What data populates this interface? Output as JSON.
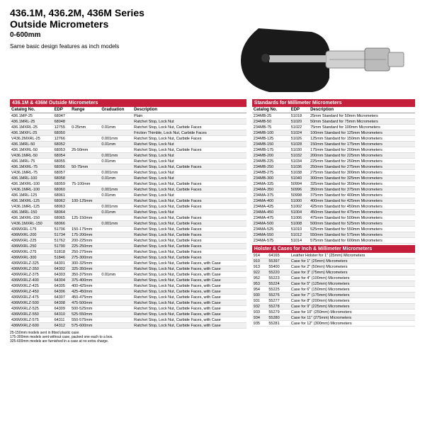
{
  "header": {
    "title": "436.1M, 436.2M, 436M Series",
    "subtitle": "Outside Micrometers",
    "range": "0-600mm",
    "note": "Same basic design features as inch models"
  },
  "leftTable": {
    "heading": "436.1M & 436M Outside Micrometers",
    "cols": [
      "Catalog No.",
      "EDP",
      "Range",
      "Graduation",
      "Description"
    ],
    "rows": [
      [
        "436.1MP-25",
        "68047",
        "",
        "",
        "Plain"
      ],
      [
        "436.1MRL-25",
        "68048",
        "",
        "",
        "Ratchet Stop, Lock Nut"
      ],
      [
        "436.1MXRL-25",
        "12755",
        "0-25mm",
        "0.01mm",
        "Ratchet Stop, Lock Nut, Carbide Faces"
      ],
      [
        "436.1MXFL-25",
        "68050",
        "",
        "",
        "Friction Thimble, Lock Nut, Carbide Faces"
      ],
      [
        "V436.2MXRL-25",
        "12766",
        "",
        "0.001mm",
        "Ratchet Stop, Lock Nut, Carbide Faces"
      ],
      [
        "436.1MRL-50",
        "68052",
        "",
        "0.01mm",
        "Ratchet Stop, Lock Nut"
      ],
      [
        "436.1MXRL-50",
        "68053",
        "25-50mm",
        "",
        "Ratchet Stop, Lock Nut, Carbide Faces"
      ],
      [
        "V436.1MRL-50",
        "68054",
        "",
        "0.001mm",
        "Ratchet Stop, Lock Nut"
      ],
      [
        "436.1MRL-75",
        "68055",
        "",
        "0.01mm",
        "Ratchet Stop, Lock Nut"
      ],
      [
        "436.1MXRL-75",
        "68056",
        "50-75mm",
        "",
        "Ratchet Stop, Lock Nut, Carbide Faces"
      ],
      [
        "V436.1MRL-75",
        "68057",
        "",
        "0.001mm",
        "Ratchet Stop, Lock Nut"
      ],
      [
        "436.1MRL-100",
        "68058",
        "",
        "0.01mm",
        "Ratchet Stop, Lock Nut"
      ],
      [
        "436.1MXRL-100",
        "68059",
        "75-100mm",
        "",
        "Ratchet Stop, Lock Nut, Carbide Faces"
      ],
      [
        "V436.1MRL-100",
        "68060",
        "",
        "0.001mm",
        "Ratchet Stop, Lock Nut, Carbide Faces"
      ],
      [
        "436.1MRL-125",
        "68061",
        "",
        "0.01mm",
        "Ratchet Stop, Lock Nut"
      ],
      [
        "436.1MXRL-125",
        "68062",
        "100-125mm",
        "",
        "Ratchet Stop, Lock Nut, Carbide Faces"
      ],
      [
        "V436.1MRL-125",
        "68063",
        "",
        "0.001mm",
        "Ratchet Stop, Lock Nut, Carbide Faces"
      ],
      [
        "436.1MRL-150",
        "68064",
        "",
        "0.01mm",
        "Ratchet Stop, Lock Nut"
      ],
      [
        "436.1MXRL-150",
        "68065",
        "125-150mm",
        "",
        "Ratchet Stop, Lock Nut, Carbide Faces"
      ],
      [
        "V436.1MXRL-150",
        "68066",
        "",
        "0.001mm",
        "Ratchet Stop, Lock Nut, Carbide Faces"
      ],
      [
        "436MXRL-175",
        "51706",
        "150-175mm",
        "",
        "Ratchet Stop, Lock Nut, Carbide Faces"
      ],
      [
        "436MXRL-200",
        "51734",
        "175-200mm",
        "",
        "Ratchet Stop, Lock Nut, Carbide Faces"
      ],
      [
        "436MXRL-225",
        "51762",
        "200-225mm",
        "",
        "Ratchet Stop, Lock Nut, Carbide Faces"
      ],
      [
        "436MXRL-250",
        "51790",
        "225-250mm",
        "",
        "Ratchet Stop, Lock Nut, Carbide Faces"
      ],
      [
        "436MXRL-275",
        "51818",
        "250-275mm",
        "",
        "Ratchet Stop, Lock Nut, Carbide Faces"
      ],
      [
        "436MXRL-300",
        "51846",
        "275-300mm",
        "",
        "Ratchet Stop, Lock Nut, Carbide Faces"
      ],
      [
        "436MXRLZ-325",
        "64301",
        "300-325mm",
        "",
        "Ratchet Stop, Lock Nut, Carbide Faces, with Case"
      ],
      [
        "436MXRLZ-350",
        "64302",
        "325-350mm",
        "",
        "Ratchet Stop, Lock Nut, Carbide Faces, with Case"
      ],
      [
        "436MXRLZ-375",
        "64303",
        "350-375mm",
        "0.01mm",
        "Ratchet Stop, Lock Nut, Carbide Faces, with Case"
      ],
      [
        "436MXRLZ-400",
        "64304",
        "375-400mm",
        "",
        "Ratchet Stop, Lock Nut, Carbide Faces, with Case"
      ],
      [
        "436MXRLZ-425",
        "64305",
        "400-425mm",
        "",
        "Ratchet Stop, Lock Nut, Carbide Faces, with Case"
      ],
      [
        "436MXRLZ-450",
        "64306",
        "425-450mm",
        "",
        "Ratchet Stop, Lock Nut, Carbide Faces, with Case"
      ],
      [
        "436MXRLZ-475",
        "64307",
        "450-475mm",
        "",
        "Ratchet Stop, Lock Nut, Carbide Faces, with Case"
      ],
      [
        "436MXRLZ-500",
        "64308",
        "475-500mm",
        "",
        "Ratchet Stop, Lock Nut, Carbide Faces, with Case"
      ],
      [
        "436MXRLZ-525",
        "64309",
        "500-525mm",
        "",
        "Ratchet Stop, Lock Nut, Carbide Faces, with Case"
      ],
      [
        "436MXRLZ-550",
        "64310",
        "525-550mm",
        "",
        "Ratchet Stop, Lock Nut, Carbide Faces, with Case"
      ],
      [
        "436MXRLZ-575",
        "64311",
        "550-575mm",
        "",
        "Ratchet Stop, Lock Nut, Carbide Faces, with Case"
      ],
      [
        "436MXRLZ-600",
        "64312",
        "575-600mm",
        "",
        "Ratchet Stop, Lock Nut, Carbide Faces, with Case"
      ]
    ]
  },
  "rightTableA": {
    "heading": "Standards for Millimeter Micrometers",
    "cols": [
      "Catalog No.",
      "EDP",
      "Description"
    ],
    "rows": [
      [
        "234MB-25",
        "51018",
        "25mm Standard for 50mm Micrometers"
      ],
      [
        "234MB-50",
        "51020",
        "50mm Standard for 75mm Micrometers"
      ],
      [
        "234MB-75",
        "51022",
        "75mm Standard for 100mm Micrometers"
      ],
      [
        "234MB-100",
        "51024",
        "100mm Standard for 125mm Micrometers"
      ],
      [
        "234MB-125",
        "51026",
        "125mm Standard for 150mm Micrometers"
      ],
      [
        "234MB-150",
        "51028",
        "150mm Standard for 175mm Micrometers"
      ],
      [
        "234MB-175",
        "51030",
        "175mm Standard for 200mm Micrometers"
      ],
      [
        "234MB-200",
        "51032",
        "200mm Standard for 225mm Micrometers"
      ],
      [
        "234MB-225",
        "51034",
        "225mm Standard for 250mm Micrometers"
      ],
      [
        "234MB-250",
        "51036",
        "250mm Standard for 275mm Micrometers"
      ],
      [
        "234MB-275",
        "51038",
        "275mm Standard for 300mm Micrometers"
      ],
      [
        "234MB-300",
        "51040",
        "300mm Standard for 325mm Micrometers"
      ],
      [
        "234MA-325",
        "50994",
        "325mm Standard for 350mm Micrometers"
      ],
      [
        "234MA-350",
        "50996",
        "350mm Standard for 375mm Micrometers"
      ],
      [
        "234MA-375",
        "50998",
        "375mm Standard for 400mm Micrometers"
      ],
      [
        "234MA-400",
        "51000",
        "400mm Standard for 425mm Micrometers"
      ],
      [
        "234MA-425",
        "51002",
        "425mm Standard for 450mm Micrometers"
      ],
      [
        "234MA-450",
        "51004",
        "450mm Standard for 475mm Micrometers"
      ],
      [
        "234MA-475",
        "51006",
        "475mm Standard for 500mm Micrometers"
      ],
      [
        "234MA-500",
        "51008",
        "500mm Standard for 525mm Micrometers"
      ],
      [
        "234MA-525",
        "51010",
        "525mm Standard for 550mm Micrometers"
      ],
      [
        "234MA-550",
        "51012",
        "550mm Standard for 575mm Micrometers"
      ],
      [
        "234MA-575",
        "51014",
        "575mm Standard for 600mm Micrometers"
      ]
    ]
  },
  "rightTableB": {
    "heading": "Holster & Cases for Inch & Millimeter Micrometers",
    "rows": [
      [
        "914",
        "64165",
        "Leather Holster for 1\" (25mm) Micrometers"
      ],
      [
        "910",
        "55397",
        "Case for 1\" (25mm) Micrometers"
      ],
      [
        "913",
        "55400",
        "Case for 2\" (50mm) Micrometers"
      ],
      [
        "922",
        "55220",
        "Case for 3\" (75mm) Micrometers"
      ],
      [
        "952",
        "55223",
        "Case for 4\" (100mm) Micrometers"
      ],
      [
        "953",
        "55224",
        "Case for 5\" (125mm) Micrometers"
      ],
      [
        "954",
        "55225",
        "Case for 6\" (150mm) Micrometers"
      ],
      [
        "930",
        "55276",
        "Case for 7\" (175mm) Micrometers"
      ],
      [
        "931",
        "55277",
        "Case for 8\" (200mm) Micrometers"
      ],
      [
        "932",
        "55278",
        "Case for 9\" (225mm) Micrometers"
      ],
      [
        "933",
        "55279",
        "Case for 10\" (250mm) Micrometers"
      ],
      [
        "934",
        "55280",
        "Case for 11\" (275mm) Micrometers"
      ],
      [
        "935",
        "55281",
        "Case for 12\" (300mm) Micrometers"
      ]
    ]
  },
  "footnotes": [
    "25-150mm models sent in fitted plastic case.",
    "175-300mm models sent without case, packed one each to a box.",
    "325-600mm models are furnished in a case at no extra charge."
  ],
  "colors": {
    "headerBar": "#c41e3a"
  }
}
